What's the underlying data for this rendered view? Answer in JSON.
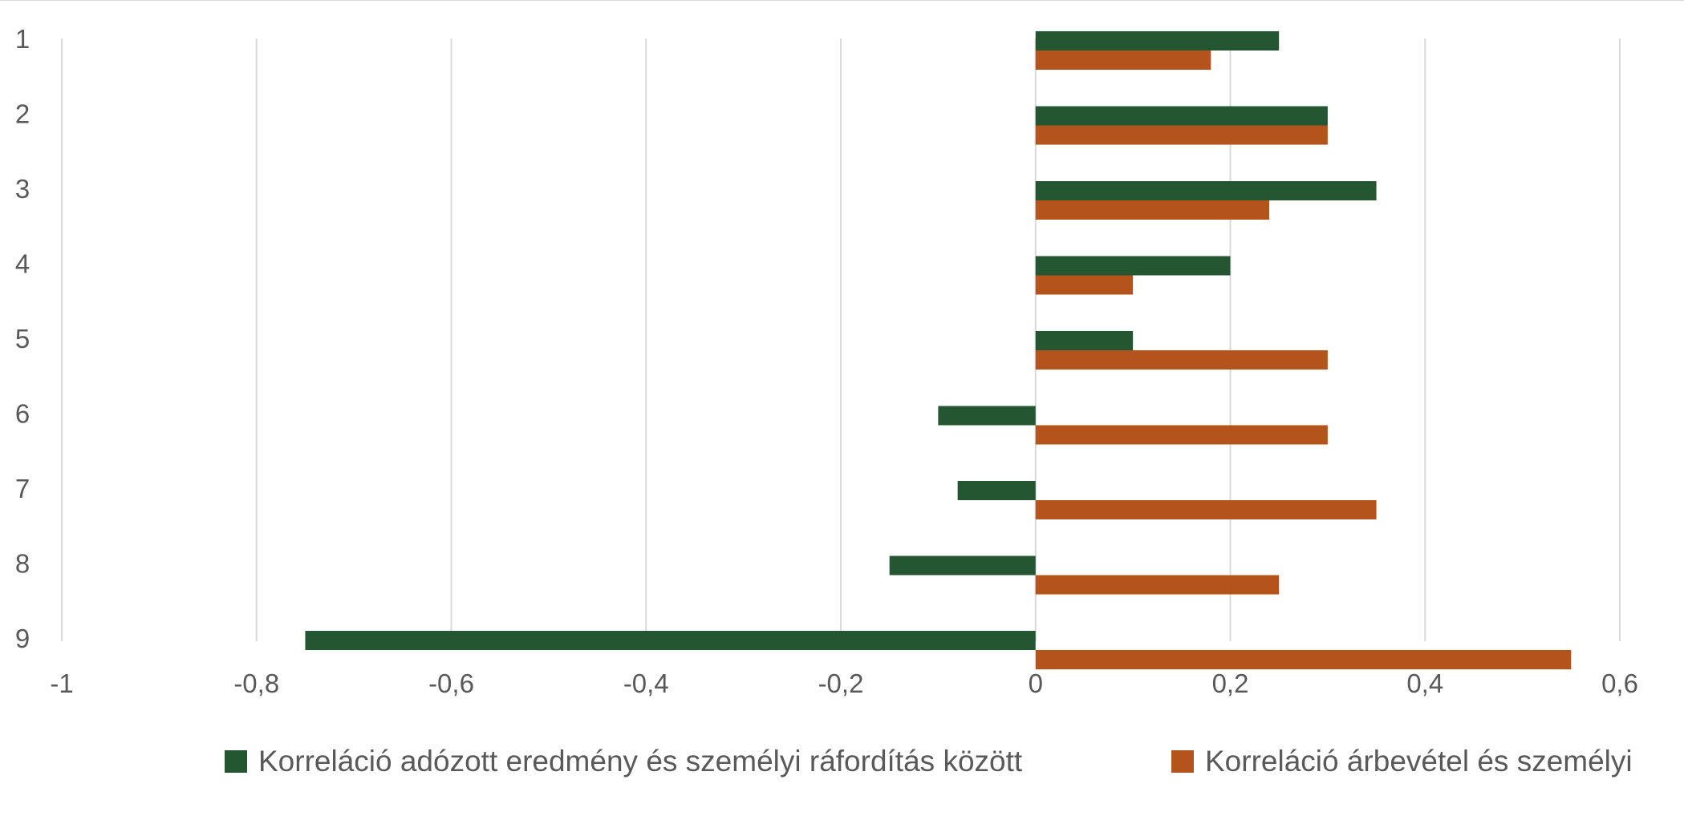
{
  "chart_data": {
    "type": "bar",
    "orientation": "horizontal",
    "categories": [
      "1",
      "2",
      "3",
      "4",
      "5",
      "6",
      "7",
      "8",
      "9"
    ],
    "series": [
      {
        "name": "Korreláció adózott eredmény és személyi ráfordítás között",
        "color": "#245631",
        "values": [
          0.25,
          0.3,
          0.35,
          0.2,
          0.1,
          -0.1,
          -0.08,
          -0.15,
          -0.75
        ]
      },
      {
        "name": "Korreláció árbevétel és személyi",
        "color": "#b5531c",
        "values": [
          0.18,
          0.3,
          0.24,
          0.1,
          0.3,
          0.3,
          0.35,
          0.25,
          0.55
        ]
      }
    ],
    "xticks": [
      "-1",
      "-0,8",
      "-0,6",
      "-0,4",
      "-0,2",
      "0",
      "0,2",
      "0,4",
      "0,6"
    ],
    "xlim": [
      -1,
      0.6
    ],
    "xstep": 0.2,
    "grid": true,
    "legend_position": "bottom",
    "title": "",
    "xlabel": "",
    "ylabel": ""
  }
}
